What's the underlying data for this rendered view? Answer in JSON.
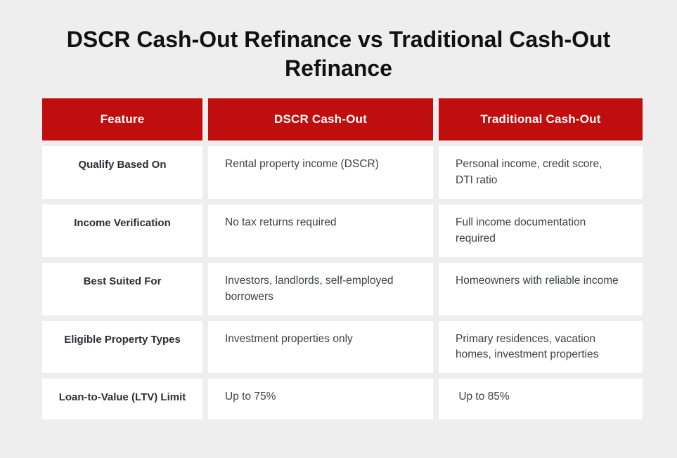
{
  "chart_data": {
    "type": "table",
    "title": "DSCR Cash-Out Refinance vs Traditional Cash-Out Refinance",
    "columns": [
      "Feature",
      "DSCR Cash-Out",
      "Traditional Cash-Out"
    ],
    "rows": [
      [
        "Qualify Based On",
        "Rental property income (DSCR)",
        "Personal income, credit score, DTI ratio"
      ],
      [
        "Income Verification",
        "No tax returns required",
        "Full income documentation required"
      ],
      [
        "Best Suited For",
        "Investors, landlords, self-employed borrowers",
        "Homeowners with reliable income"
      ],
      [
        "Eligible Property Types",
        "Investment properties only",
        "Primary residences, vacation homes, investment properties"
      ],
      [
        "Loan-to-Value (LTV) Limit",
        "Up to 75%",
        " Up to 85%"
      ]
    ],
    "layout": {
      "header_background": "#c00d0d",
      "header_text_color": "#ffffff",
      "page_background": "#eeeeee",
      "cell_background": "#ffffff",
      "legend_position": "none",
      "grid": "off"
    }
  }
}
